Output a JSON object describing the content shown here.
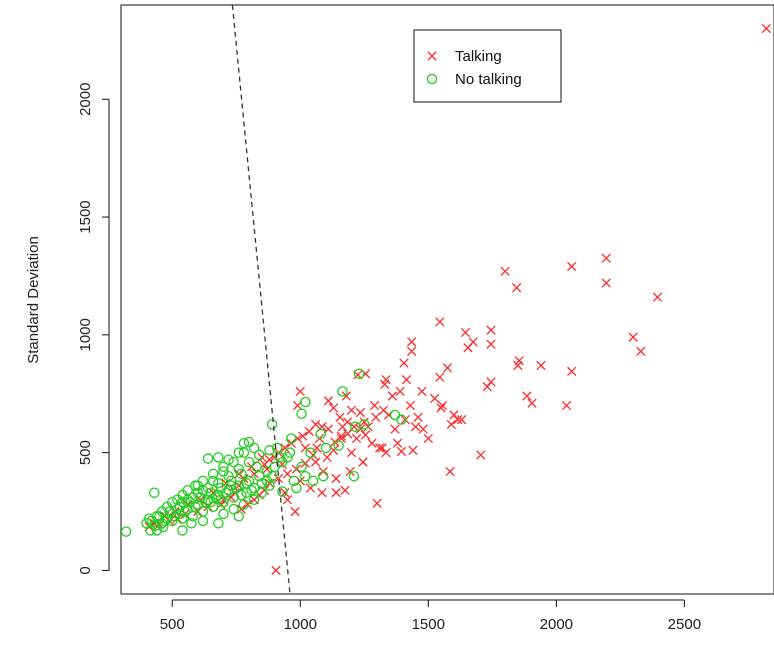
{
  "chart_data": {
    "type": "scatter",
    "title": "",
    "xlabel": "",
    "ylabel": "Standard  Deviation",
    "xlim": [
      300,
      2850
    ],
    "ylim": [
      -100,
      2400
    ],
    "xticks": [
      "500",
      "1000",
      "1500",
      "2000",
      "2500"
    ],
    "yticks": [
      "0",
      "500",
      "1000",
      "1500",
      "2000"
    ],
    "grid": false,
    "legend_position": "top-center",
    "colors": {
      "talking": "#ff2a2a",
      "no_talking": "#22cc22",
      "boundary": "#333333"
    },
    "boundary_line": {
      "style": "dashed",
      "points": [
        [
          735,
          2400
        ],
        [
          960,
          -100
        ]
      ]
    },
    "series": [
      {
        "name": "Talking",
        "marker": "x",
        "points": [
          [
            2820,
            2300
          ],
          [
            1800,
            1270
          ],
          [
            2060,
            1290
          ],
          [
            2195,
            1325
          ],
          [
            2195,
            1220
          ],
          [
            1845,
            1200
          ],
          [
            2395,
            1160
          ],
          [
            1545,
            1055
          ],
          [
            1645,
            1010
          ],
          [
            1745,
            1020
          ],
          [
            1675,
            970
          ],
          [
            1745,
            960
          ],
          [
            1655,
            945
          ],
          [
            1435,
            970
          ],
          [
            1745,
            800
          ],
          [
            1730,
            780
          ],
          [
            1855,
            890
          ],
          [
            1940,
            870
          ],
          [
            1850,
            870
          ],
          [
            2300,
            990
          ],
          [
            2330,
            930
          ],
          [
            2060,
            845
          ],
          [
            1885,
            740
          ],
          [
            1905,
            710
          ],
          [
            2040,
            700
          ],
          [
            1435,
            930
          ],
          [
            1405,
            880
          ],
          [
            1575,
            860
          ],
          [
            1545,
            820
          ],
          [
            1475,
            760
          ],
          [
            1525,
            730
          ],
          [
            1555,
            700
          ],
          [
            1600,
            660
          ],
          [
            1615,
            640
          ],
          [
            1590,
            620
          ],
          [
            1550,
            690
          ],
          [
            1705,
            490
          ],
          [
            1585,
            420
          ],
          [
            1440,
            510
          ],
          [
            1395,
            505
          ],
          [
            1335,
            810
          ],
          [
            1225,
            830
          ],
          [
            1255,
            835
          ],
          [
            1390,
            760
          ],
          [
            1360,
            740
          ],
          [
            1325,
            680
          ],
          [
            1295,
            650
          ],
          [
            1250,
            630
          ],
          [
            1210,
            610
          ],
          [
            1185,
            580
          ],
          [
            1160,
            560
          ],
          [
            1135,
            545
          ],
          [
            1110,
            600
          ],
          [
            1085,
            610
          ],
          [
            1060,
            620
          ],
          [
            1035,
            590
          ],
          [
            1010,
            570
          ],
          [
            990,
            560
          ],
          [
            965,
            540
          ],
          [
            940,
            520
          ],
          [
            915,
            500
          ],
          [
            900,
            480
          ],
          [
            880,
            470
          ],
          [
            860,
            450
          ],
          [
            1000,
            760
          ],
          [
            990,
            700
          ],
          [
            1110,
            720
          ],
          [
            1130,
            690
          ],
          [
            1155,
            650
          ],
          [
            1185,
            630
          ],
          [
            1235,
            600
          ],
          [
            1255,
            575
          ],
          [
            1280,
            540
          ],
          [
            1310,
            520
          ],
          [
            1335,
            500
          ],
          [
            1380,
            540
          ],
          [
            1245,
            460
          ],
          [
            1195,
            420
          ],
          [
            1140,
            390
          ],
          [
            1085,
            330
          ],
          [
            1140,
            330
          ],
          [
            1175,
            340
          ],
          [
            1300,
            285
          ],
          [
            1090,
            420
          ],
          [
            1050,
            490
          ],
          [
            1020,
            455
          ],
          [
            985,
            430
          ],
          [
            950,
            410
          ],
          [
            915,
            390
          ],
          [
            880,
            370
          ],
          [
            860,
            340
          ],
          [
            840,
            320
          ],
          [
            820,
            300
          ],
          [
            795,
            280
          ],
          [
            770,
            260
          ],
          [
            950,
            300
          ],
          [
            980,
            250
          ],
          [
            940,
            330
          ],
          [
            1040,
            350
          ],
          [
            1000,
            380
          ],
          [
            1065,
            520
          ],
          [
            1130,
            510
          ],
          [
            1020,
            520
          ],
          [
            1200,
            680
          ],
          [
            1160,
            570
          ],
          [
            1060,
            460
          ],
          [
            930,
            450
          ],
          [
            905,
            0
          ],
          [
            870,
            430
          ],
          [
            820,
            410
          ],
          [
            780,
            390
          ],
          [
            760,
            360
          ],
          [
            745,
            330
          ],
          [
            730,
            310
          ],
          [
            700,
            300
          ],
          [
            690,
            280
          ],
          [
            640,
            270
          ],
          [
            600,
            250
          ],
          [
            550,
            240
          ],
          [
            520,
            220
          ],
          [
            490,
            210
          ],
          [
            450,
            195
          ],
          [
            410,
            185
          ],
          [
            430,
            200
          ],
          [
            470,
            230
          ],
          [
            510,
            250
          ],
          [
            560,
            280
          ],
          [
            610,
            300
          ],
          [
            660,
            330
          ],
          [
            710,
            370
          ],
          [
            760,
            410
          ],
          [
            810,
            440
          ],
          [
            850,
            480
          ],
          [
            1220,
            560
          ],
          [
            1265,
            610
          ],
          [
            1290,
            700
          ],
          [
            1345,
            660
          ],
          [
            1370,
            600
          ],
          [
            1410,
            640
          ],
          [
            1430,
            700
          ],
          [
            1460,
            650
          ],
          [
            1500,
            560
          ],
          [
            1480,
            600
          ],
          [
            1630,
            640
          ],
          [
            1235,
            670
          ],
          [
            1180,
            740
          ],
          [
            1330,
            790
          ],
          [
            1415,
            810
          ],
          [
            1450,
            610
          ],
          [
            1320,
            520
          ],
          [
            1200,
            500
          ],
          [
            1105,
            480
          ],
          [
            1075,
            560
          ],
          [
            1165,
            610
          ]
        ]
      },
      {
        "name": "No  talking",
        "marker": "o",
        "points": [
          [
            1230,
            835
          ],
          [
            1165,
            760
          ],
          [
            1020,
            715
          ],
          [
            1005,
            665
          ],
          [
            890,
            620
          ],
          [
            1215,
            610
          ],
          [
            1250,
            620
          ],
          [
            1370,
            660
          ],
          [
            1395,
            640
          ],
          [
            1080,
            580
          ],
          [
            965,
            560
          ],
          [
            1150,
            530
          ],
          [
            1040,
            500
          ],
          [
            1005,
            440
          ],
          [
            1210,
            400
          ],
          [
            1020,
            400
          ],
          [
            985,
            350
          ],
          [
            930,
            335
          ],
          [
            880,
            360
          ],
          [
            850,
            330
          ],
          [
            820,
            300
          ],
          [
            780,
            280
          ],
          [
            740,
            260
          ],
          [
            700,
            240
          ],
          [
            760,
            230
          ],
          [
            680,
            200
          ],
          [
            620,
            210
          ],
          [
            575,
            200
          ],
          [
            540,
            170
          ],
          [
            465,
            185
          ],
          [
            440,
            170
          ],
          [
            415,
            170
          ],
          [
            320,
            165
          ],
          [
            430,
            330
          ],
          [
            640,
            475
          ],
          [
            680,
            480
          ],
          [
            780,
            540
          ],
          [
            800,
            545
          ],
          [
            760,
            500
          ],
          [
            720,
            470
          ],
          [
            700,
            440
          ],
          [
            660,
            410
          ],
          [
            620,
            380
          ],
          [
            590,
            360
          ],
          [
            560,
            340
          ],
          [
            540,
            320
          ],
          [
            520,
            300
          ],
          [
            500,
            290
          ],
          [
            480,
            270
          ],
          [
            460,
            250
          ],
          [
            440,
            230
          ],
          [
            420,
            210
          ],
          [
            400,
            200
          ],
          [
            530,
            240
          ],
          [
            560,
            260
          ],
          [
            600,
            280
          ],
          [
            640,
            300
          ],
          [
            680,
            320
          ],
          [
            720,
            340
          ],
          [
            760,
            360
          ],
          [
            800,
            380
          ],
          [
            840,
            400
          ],
          [
            870,
            420
          ],
          [
            900,
            440
          ],
          [
            930,
            460
          ],
          [
            950,
            480
          ],
          [
            870,
            380
          ],
          [
            820,
            350
          ],
          [
            790,
            330
          ],
          [
            740,
            310
          ],
          [
            700,
            290
          ],
          [
            660,
            270
          ],
          [
            620,
            250
          ],
          [
            580,
            230
          ],
          [
            540,
            220
          ],
          [
            500,
            210
          ],
          [
            460,
            200
          ],
          [
            480,
            220
          ],
          [
            520,
            260
          ],
          [
            560,
            300
          ],
          [
            600,
            330
          ],
          [
            640,
            350
          ],
          [
            680,
            370
          ],
          [
            720,
            400
          ],
          [
            760,
            430
          ],
          [
            800,
            460
          ],
          [
            840,
            490
          ],
          [
            880,
            510
          ],
          [
            910,
            520
          ],
          [
            830,
            440
          ],
          [
            770,
            410
          ],
          [
            730,
            380
          ],
          [
            690,
            350
          ],
          [
            650,
            330
          ],
          [
            610,
            310
          ],
          [
            570,
            290
          ],
          [
            530,
            270
          ],
          [
            490,
            250
          ],
          [
            450,
            230
          ],
          [
            410,
            220
          ],
          [
            435,
            190
          ],
          [
            470,
            210
          ],
          [
            510,
            230
          ],
          [
            550,
            250
          ],
          [
            590,
            270
          ],
          [
            630,
            290
          ],
          [
            670,
            310
          ],
          [
            710,
            330
          ],
          [
            750,
            350
          ],
          [
            790,
            370
          ],
          [
            620,
            340
          ],
          [
            660,
            380
          ],
          [
            700,
            420
          ],
          [
            740,
            460
          ],
          [
            780,
            500
          ],
          [
            820,
            520
          ],
          [
            580,
            310
          ],
          [
            540,
            290
          ],
          [
            600,
            360
          ],
          [
            650,
            290
          ],
          [
            690,
            300
          ],
          [
            730,
            360
          ],
          [
            770,
            320
          ],
          [
            810,
            340
          ],
          [
            850,
            370
          ],
          [
            890,
            400
          ],
          [
            920,
            480
          ],
          [
            960,
            500
          ],
          [
            1100,
            520
          ],
          [
            975,
            380
          ],
          [
            1050,
            380
          ],
          [
            1090,
            400
          ]
        ]
      }
    ]
  }
}
